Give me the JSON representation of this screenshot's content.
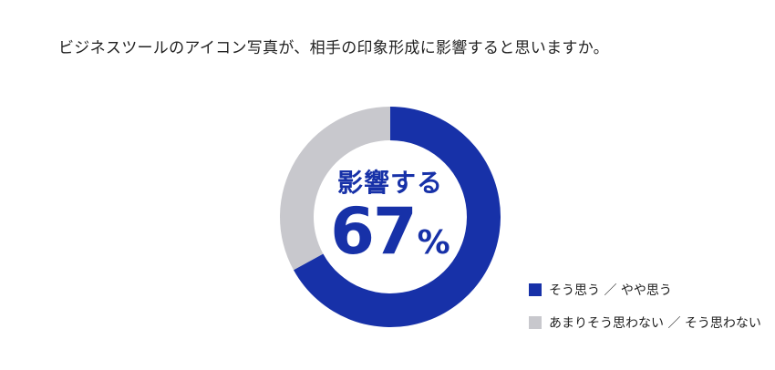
{
  "title": "ビジネスツールのアイコン写真が、相手の印象形成に影響すると思いますか。",
  "center": {
    "label": "影響する",
    "value_number": "67",
    "value_unit": "%"
  },
  "legend": [
    {
      "label": "そう思う ／ やや思う",
      "color": "#1731a8"
    },
    {
      "label": "あまりそう思わない ／ そう思わない",
      "color": "#c8c8cd"
    }
  ],
  "chart_data": {
    "type": "pie",
    "variant": "donut",
    "title": "ビジネスツールのアイコン写真が、相手の印象形成に影響すると思いますか。",
    "labels": [
      "そう思う ／ やや思う",
      "あまりそう思わない ／ そう思わない"
    ],
    "values": [
      67,
      33
    ],
    "colors": [
      "#1731a8",
      "#c8c8cd"
    ],
    "center_text": "影響する 67%",
    "legend_position": "bottom-right"
  }
}
